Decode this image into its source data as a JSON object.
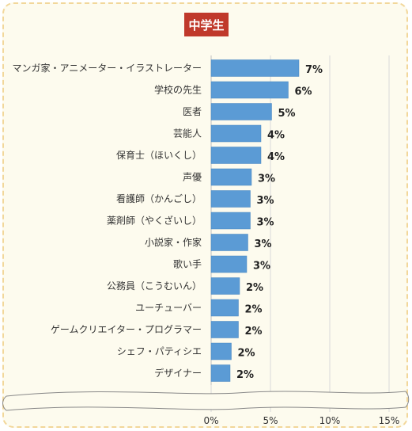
{
  "chart_data": {
    "type": "bar",
    "orientation": "horizontal",
    "title": "中学生",
    "categories": [
      "マンガ家・アニメーター・イラストレーター",
      "学校の先生",
      "医者",
      "芸能人",
      "保育士（ほいくし）",
      "声優",
      "看護師（かんごし）",
      "薬剤師（やくざいし）",
      "小説家・作家",
      "歌い手",
      "公務員（こうむいん）",
      "ユーチューバー",
      "ゲームクリエイター・プログラマー",
      "シェフ・パティシエ",
      "デザイナー"
    ],
    "values": [
      7.4,
      6.5,
      5.1,
      4.2,
      4.2,
      3.4,
      3.3,
      3.3,
      3.1,
      3.0,
      2.4,
      2.3,
      2.3,
      1.7,
      1.6
    ],
    "value_labels": [
      "7%",
      "6%",
      "5%",
      "4%",
      "4%",
      "3%",
      "3%",
      "3%",
      "3%",
      "3%",
      "2%",
      "2%",
      "2%",
      "2%",
      "2%"
    ],
    "x_ticks": [
      0,
      5,
      10,
      15
    ],
    "x_tick_labels": [
      "0%",
      "5%",
      "10%",
      "15%"
    ],
    "xlim": [
      0,
      15
    ],
    "grid": true,
    "axis_break": true,
    "colors": {
      "bar": "#5b9bd5",
      "bar_edge": "#4a86c0",
      "badge": "#c0392b",
      "background": "#fdfbee",
      "border": "#f2d79a",
      "grid": "#d9d9d9"
    }
  }
}
